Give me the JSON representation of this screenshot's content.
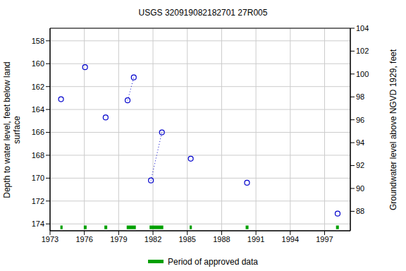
{
  "chart_data": {
    "type": "scatter",
    "title": "USGS 320919082182701 27R005",
    "y_label": "Depth to water level, feet below land surface",
    "y2_label": "Groundwater level above NGVD 1929, feet",
    "xlim": [
      1973,
      1999.25
    ],
    "xticks": [
      1973,
      1976,
      1979,
      1982,
      1985,
      1988,
      1991,
      1994,
      1997
    ],
    "ylim": [
      174.6,
      156.9
    ],
    "yticks": [
      158,
      160,
      162,
      164,
      166,
      168,
      170,
      172,
      174
    ],
    "y2lim": [
      86.3,
      104
    ],
    "y2ticks": [
      88,
      90,
      92,
      94,
      96,
      98,
      100,
      102,
      104
    ],
    "grid": true,
    "series": [
      {
        "type": "scatter",
        "marker": "circle",
        "color": "#0000cc",
        "x": [
          1973.96,
          1976.06,
          1977.86,
          1979.78,
          1980.32,
          1981.82,
          1982.78,
          1985.3,
          1990.22,
          1998.14
        ],
        "values": [
          163.1,
          160.3,
          164.7,
          163.2,
          161.2,
          170.2,
          166.0,
          168.3,
          170.4,
          173.1
        ]
      },
      {
        "type": "line",
        "line_style": "dotted",
        "color": "#0000cc",
        "x": [
          1979.78,
          1980.32
        ],
        "values": [
          163.2,
          161.2
        ]
      },
      {
        "type": "line",
        "line_style": "dotted",
        "color": "#0000cc",
        "x": [
          1981.82,
          1982.78
        ],
        "values": [
          170.2,
          166.0
        ]
      }
    ],
    "approved_periods": {
      "name": "Period of approved data",
      "color": "#00a000",
      "ranges": [
        [
          1973.9,
          1974.1
        ],
        [
          1975.95,
          1976.2
        ],
        [
          1977.75,
          1978.0
        ],
        [
          1979.7,
          1980.5
        ],
        [
          1981.7,
          1982.9
        ],
        [
          1985.2,
          1985.4
        ],
        [
          1990.1,
          1990.35
        ],
        [
          1998.0,
          1998.25
        ]
      ]
    }
  }
}
